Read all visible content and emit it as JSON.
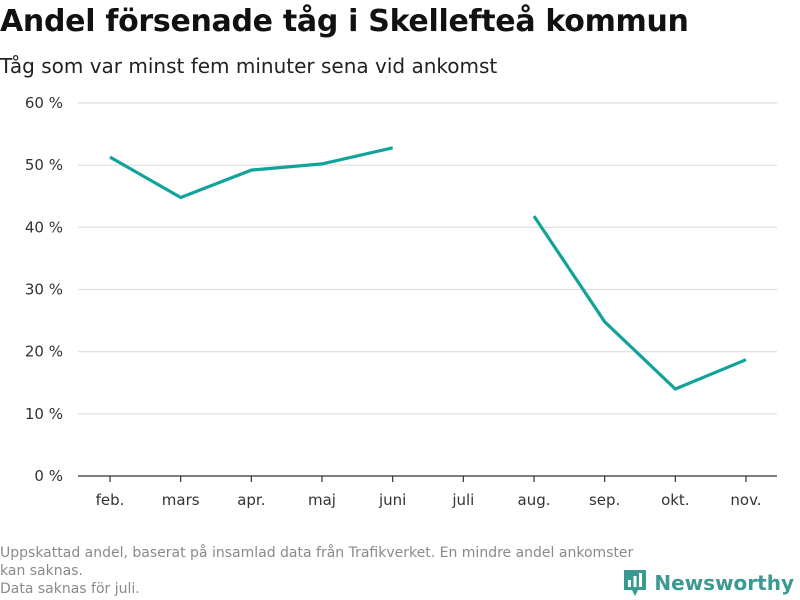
{
  "chart_data": {
    "type": "line",
    "title": "Andel försenade tåg i Skellefteå kommun",
    "subtitle": "Tåg som var minst fem minuter sena vid ankomst",
    "categories": [
      "feb.",
      "mars",
      "apr.",
      "maj",
      "juni",
      "juli",
      "aug.",
      "sep.",
      "okt.",
      "nov."
    ],
    "series": [
      {
        "name": "Andel försenade tåg",
        "color": "#11a39a",
        "values": [
          51.3,
          44.8,
          49.2,
          50.2,
          52.8,
          null,
          41.8,
          24.8,
          14.0,
          18.7
        ]
      }
    ],
    "y_ticks": [
      0,
      10,
      20,
      30,
      40,
      50,
      60
    ],
    "y_tick_labels": [
      "0 %",
      "10 %",
      "20 %",
      "30 %",
      "40 %",
      "50 %",
      "60 %"
    ],
    "ylim": [
      0,
      60
    ],
    "xlabel": "",
    "ylabel": "",
    "grid": true,
    "legend": "none"
  },
  "footnote": {
    "line1": "Uppskattad andel, baserat på insamlad data från Trafikverket. En mindre andel ankomster kan saknas.",
    "line2": "Data saknas för juli."
  },
  "brand": {
    "name": "Newsworthy",
    "icon": "newsworthy-logo-icon",
    "color": "#3a9a92"
  }
}
